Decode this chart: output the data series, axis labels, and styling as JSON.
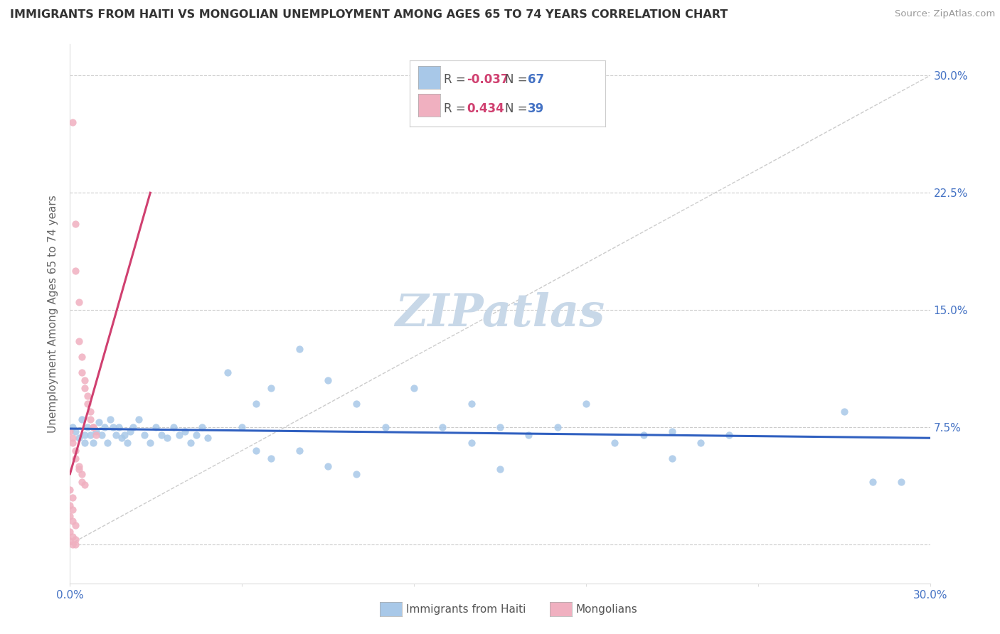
{
  "title": "IMMIGRANTS FROM HAITI VS MONGOLIAN UNEMPLOYMENT AMONG AGES 65 TO 74 YEARS CORRELATION CHART",
  "source": "Source: ZipAtlas.com",
  "ylabel": "Unemployment Among Ages 65 to 74 years",
  "xlim": [
    0.0,
    0.3
  ],
  "ylim": [
    -0.025,
    0.32
  ],
  "ytick_vals": [
    0.0,
    0.075,
    0.15,
    0.225,
    0.3
  ],
  "ytick_labels_right": [
    "",
    "7.5%",
    "15.0%",
    "22.5%",
    "30.0%"
  ],
  "xtick_vals": [
    0.0,
    0.06,
    0.12,
    0.18,
    0.24,
    0.3
  ],
  "xtick_labels": [
    "0.0%",
    "",
    "",
    "",
    "",
    "30.0%"
  ],
  "R_haiti": -0.037,
  "N_haiti": 67,
  "R_mongolia": 0.434,
  "N_mongolia": 39,
  "haiti_color": "#a8c8e8",
  "mongolia_color": "#f0b0c0",
  "haiti_line_color": "#3060c0",
  "mongolia_line_color": "#d04070",
  "diag_line_color": "#cccccc",
  "background_color": "#ffffff",
  "grid_color": "#cccccc",
  "title_color": "#333333",
  "tick_color": "#4472c4",
  "label_color": "#666666",
  "watermark_color": "#c8d8e8",
  "watermark": "ZIPatlas",
  "haiti_scatter": [
    [
      0.001,
      0.075
    ],
    [
      0.002,
      0.072
    ],
    [
      0.003,
      0.068
    ],
    [
      0.004,
      0.08
    ],
    [
      0.005,
      0.07
    ],
    [
      0.005,
      0.065
    ],
    [
      0.006,
      0.075
    ],
    [
      0.007,
      0.07
    ],
    [
      0.008,
      0.065
    ],
    [
      0.009,
      0.072
    ],
    [
      0.01,
      0.078
    ],
    [
      0.011,
      0.07
    ],
    [
      0.012,
      0.075
    ],
    [
      0.013,
      0.065
    ],
    [
      0.014,
      0.08
    ],
    [
      0.015,
      0.075
    ],
    [
      0.016,
      0.07
    ],
    [
      0.017,
      0.075
    ],
    [
      0.018,
      0.068
    ],
    [
      0.019,
      0.07
    ],
    [
      0.02,
      0.065
    ],
    [
      0.021,
      0.072
    ],
    [
      0.022,
      0.075
    ],
    [
      0.024,
      0.08
    ],
    [
      0.026,
      0.07
    ],
    [
      0.028,
      0.065
    ],
    [
      0.03,
      0.075
    ],
    [
      0.032,
      0.07
    ],
    [
      0.034,
      0.068
    ],
    [
      0.036,
      0.075
    ],
    [
      0.038,
      0.07
    ],
    [
      0.04,
      0.072
    ],
    [
      0.042,
      0.065
    ],
    [
      0.044,
      0.07
    ],
    [
      0.046,
      0.075
    ],
    [
      0.048,
      0.068
    ],
    [
      0.055,
      0.11
    ],
    [
      0.06,
      0.075
    ],
    [
      0.065,
      0.09
    ],
    [
      0.07,
      0.1
    ],
    [
      0.08,
      0.125
    ],
    [
      0.09,
      0.105
    ],
    [
      0.1,
      0.09
    ],
    [
      0.11,
      0.075
    ],
    [
      0.12,
      0.1
    ],
    [
      0.13,
      0.075
    ],
    [
      0.14,
      0.09
    ],
    [
      0.15,
      0.075
    ],
    [
      0.16,
      0.07
    ],
    [
      0.17,
      0.075
    ],
    [
      0.18,
      0.09
    ],
    [
      0.19,
      0.065
    ],
    [
      0.2,
      0.07
    ],
    [
      0.21,
      0.072
    ],
    [
      0.22,
      0.065
    ],
    [
      0.23,
      0.07
    ],
    [
      0.065,
      0.06
    ],
    [
      0.07,
      0.055
    ],
    [
      0.08,
      0.06
    ],
    [
      0.09,
      0.05
    ],
    [
      0.1,
      0.045
    ],
    [
      0.15,
      0.048
    ],
    [
      0.27,
      0.085
    ],
    [
      0.28,
      0.04
    ],
    [
      0.29,
      0.04
    ],
    [
      0.21,
      0.055
    ],
    [
      0.14,
      0.065
    ]
  ],
  "mongolia_scatter": [
    [
      0.001,
      0.27
    ],
    [
      0.002,
      0.205
    ],
    [
      0.002,
      0.175
    ],
    [
      0.003,
      0.155
    ],
    [
      0.003,
      0.13
    ],
    [
      0.004,
      0.12
    ],
    [
      0.004,
      0.11
    ],
    [
      0.005,
      0.105
    ],
    [
      0.005,
      0.1
    ],
    [
      0.006,
      0.095
    ],
    [
      0.006,
      0.09
    ],
    [
      0.007,
      0.085
    ],
    [
      0.007,
      0.08
    ],
    [
      0.008,
      0.075
    ],
    [
      0.008,
      0.075
    ],
    [
      0.009,
      0.07
    ],
    [
      0.001,
      0.065
    ],
    [
      0.002,
      0.06
    ],
    [
      0.002,
      0.055
    ],
    [
      0.003,
      0.05
    ],
    [
      0.003,
      0.048
    ],
    [
      0.004,
      0.045
    ],
    [
      0.004,
      0.04
    ],
    [
      0.005,
      0.038
    ],
    [
      0.0,
      0.072
    ],
    [
      0.001,
      0.068
    ],
    [
      0.0,
      0.035
    ],
    [
      0.001,
      0.03
    ],
    [
      0.0,
      0.025
    ],
    [
      0.001,
      0.022
    ],
    [
      0.0,
      0.018
    ],
    [
      0.001,
      0.015
    ],
    [
      0.002,
      0.012
    ],
    [
      0.0,
      0.008
    ],
    [
      0.001,
      0.005
    ],
    [
      0.002,
      0.003
    ],
    [
      0.0,
      0.002
    ],
    [
      0.001,
      0.0
    ],
    [
      0.002,
      0.0
    ]
  ],
  "haiti_trend_x": [
    0.0,
    0.3
  ],
  "haiti_trend_y": [
    0.074,
    0.068
  ],
  "mongolia_trend_x": [
    0.0,
    0.028
  ],
  "mongolia_trend_y": [
    0.045,
    0.225
  ],
  "diag_line_x": [
    0.0,
    0.3
  ],
  "diag_line_y": [
    0.0,
    0.3
  ]
}
